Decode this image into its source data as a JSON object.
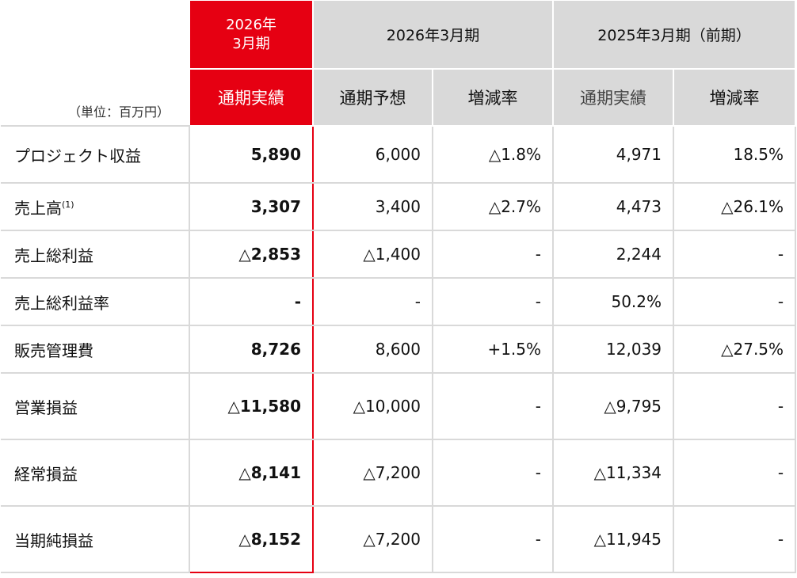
{
  "header": {
    "unit_label": "（単位：百万円）",
    "current_period": {
      "year": "2026年",
      "month": "3月期",
      "col": "通期実績"
    },
    "group_2026": {
      "title": "2026年3月期",
      "cols": [
        "通期予想",
        "増減率"
      ]
    },
    "group_2025": {
      "title": "2025年3月期（前期）",
      "cols": [
        "通期実績",
        "増減率"
      ]
    }
  },
  "rows": [
    {
      "label": "プロジェクト収益",
      "note": "",
      "actual": "5,890",
      "forecast": "6,000",
      "vs_forecast": "△1.8%",
      "prev_actual": "4,971",
      "vs_prev": "18.5%"
    },
    {
      "label": "売上高",
      "note": "(1)",
      "actual": "3,307",
      "forecast": "3,400",
      "vs_forecast": "△2.7%",
      "prev_actual": "4,473",
      "vs_prev": "△26.1%"
    },
    {
      "label": "売上総利益",
      "note": "",
      "actual": "△2,853",
      "forecast": "△1,400",
      "vs_forecast": "-",
      "prev_actual": "2,244",
      "vs_prev": "-"
    },
    {
      "label": "売上総利益率",
      "note": "",
      "actual": "-",
      "forecast": "-",
      "vs_forecast": "-",
      "prev_actual": "50.2%",
      "vs_prev": "-"
    },
    {
      "label": "販売管理費",
      "note": "",
      "actual": "8,726",
      "forecast": "8,600",
      "vs_forecast": "+1.5%",
      "prev_actual": "12,039",
      "vs_prev": "△27.5%"
    },
    {
      "label": "営業損益",
      "note": "",
      "actual": "△11,580",
      "forecast": "△10,000",
      "vs_forecast": "-",
      "prev_actual": "△9,795",
      "vs_prev": "-"
    },
    {
      "label": "経常損益",
      "note": "",
      "actual": "△8,141",
      "forecast": "△7,200",
      "vs_forecast": "-",
      "prev_actual": "△11,334",
      "vs_prev": "-"
    },
    {
      "label": "当期純損益",
      "note": "",
      "actual": "△8,152",
      "forecast": "△7,200",
      "vs_forecast": "-",
      "prev_actual": "△11,945",
      "vs_prev": "-"
    }
  ],
  "colors": {
    "accent_red": "#e60012",
    "header_grey": "#d9d9d9",
    "grid": "#d9d9d9"
  }
}
